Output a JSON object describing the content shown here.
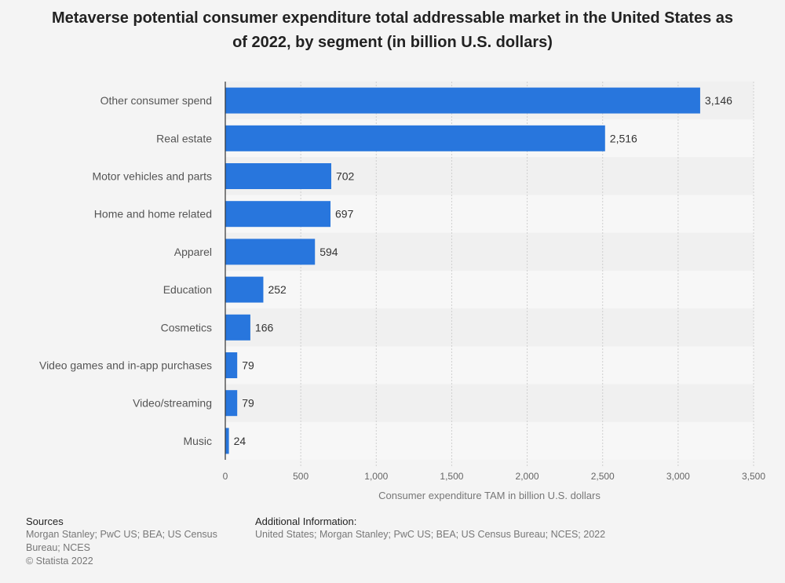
{
  "chart_data": {
    "type": "bar",
    "orientation": "horizontal",
    "title": "Metaverse potential consumer expenditure total addressable market in the United States as of 2022, by segment (in billion U.S. dollars)",
    "categories": [
      "Other consumer spend",
      "Real estate",
      "Motor vehicles and parts",
      "Home and home related",
      "Apparel",
      "Education",
      "Cosmetics",
      "Video games and in-app purchases",
      "Video/streaming",
      "Music"
    ],
    "values": [
      3146,
      2516,
      702,
      697,
      594,
      252,
      166,
      79,
      79,
      24
    ],
    "value_labels": [
      "3,146",
      "2,516",
      "702",
      "697",
      "594",
      "252",
      "166",
      "79",
      "79",
      "24"
    ],
    "xlabel": "Consumer expenditure TAM in billion U.S. dollars",
    "ylabel": "",
    "xlim": [
      0,
      3500
    ],
    "xticks": [
      0,
      500,
      1000,
      1500,
      2000,
      2500,
      3000,
      3500
    ],
    "xtick_labels": [
      "0",
      "500",
      "1,000",
      "1,500",
      "2,000",
      "2,500",
      "3,000",
      "3,500"
    ],
    "grid": true,
    "bar_color": "#2876dd"
  },
  "footer": {
    "sources_heading": "Sources",
    "sources_text": "Morgan Stanley; PwC US; BEA; US Census Bureau; NCES",
    "copyright": "© Statista 2022",
    "additional_heading": "Additional Information:",
    "additional_text": "United States; Morgan Stanley; PwC US; BEA; US Census Bureau; NCES; 2022"
  }
}
